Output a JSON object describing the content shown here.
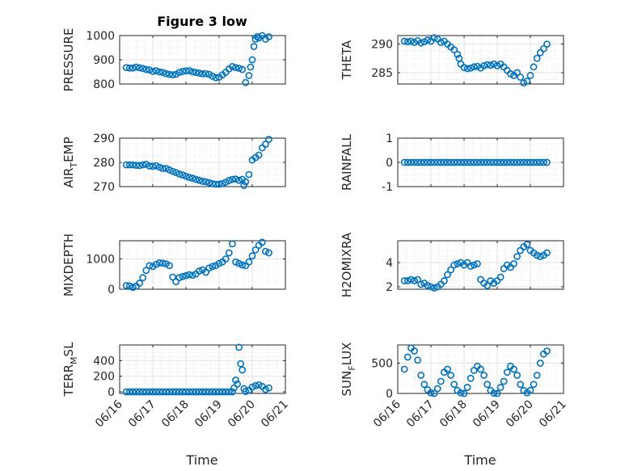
{
  "figure": {
    "title": "Figure 3 low",
    "marker_color": "#0072BD"
  },
  "chart_data": [
    {
      "type": "scatter",
      "ylabel": "PRESSURE",
      "ylabel_sub": "",
      "ylabel_tail": "",
      "ylim": [
        800,
        1000
      ],
      "yticks": [
        800,
        900,
        1000
      ],
      "grid": true,
      "xlim": [
        0,
        5
      ],
      "xticks": [
        "06/16",
        "06/17",
        "06/18",
        "06/19",
        "06/20",
        "06/21"
      ],
      "x": [
        0.2,
        0.3,
        0.4,
        0.5,
        0.6,
        0.7,
        0.8,
        0.9,
        1.0,
        1.1,
        1.2,
        1.3,
        1.4,
        1.5,
        1.6,
        1.7,
        1.8,
        1.9,
        2.0,
        2.1,
        2.2,
        2.3,
        2.4,
        2.5,
        2.6,
        2.7,
        2.8,
        2.9,
        3.0,
        3.1,
        3.2,
        3.3,
        3.4,
        3.5,
        3.6,
        3.7,
        3.8,
        3.9,
        3.95,
        4.0,
        4.05,
        4.1,
        4.15,
        4.2,
        4.3,
        4.4,
        4.5
      ],
      "y": [
        868,
        866,
        866,
        870,
        867,
        864,
        860,
        858,
        852,
        855,
        850,
        848,
        843,
        840,
        838,
        840,
        848,
        852,
        854,
        855,
        850,
        848,
        845,
        842,
        843,
        840,
        832,
        826,
        828,
        838,
        848,
        862,
        872,
        868,
        865,
        860,
        806,
        835,
        870,
        900,
        955,
        985,
        995,
        990,
        1000,
        985,
        995
      ]
    },
    {
      "type": "scatter",
      "ylabel": "THETA",
      "ylabel_sub": "",
      "ylabel_tail": "",
      "ylim": [
        283,
        291.5
      ],
      "yticks": [
        285,
        290
      ],
      "grid": true,
      "xlim": [
        0,
        5
      ],
      "xticks": [
        "06/16",
        "06/17",
        "06/18",
        "06/19",
        "06/20",
        "06/21"
      ],
      "x": [
        0.2,
        0.3,
        0.4,
        0.5,
        0.6,
        0.7,
        0.8,
        0.9,
        1.0,
        1.1,
        1.2,
        1.3,
        1.4,
        1.5,
        1.6,
        1.7,
        1.8,
        1.85,
        1.9,
        2.0,
        2.1,
        2.2,
        2.3,
        2.4,
        2.5,
        2.6,
        2.7,
        2.8,
        2.9,
        3.0,
        3.1,
        3.2,
        3.3,
        3.4,
        3.5,
        3.6,
        3.7,
        3.8,
        3.9,
        4.0,
        4.1,
        4.2,
        4.3,
        4.4,
        4.5
      ],
      "y": [
        290.5,
        290.4,
        290.5,
        290.3,
        290.6,
        290.2,
        290.4,
        290.7,
        290.5,
        291.1,
        290.9,
        290.3,
        290.5,
        290.0,
        289.5,
        289.0,
        288.2,
        287.5,
        286.5,
        285.9,
        285.7,
        285.8,
        286.0,
        286.1,
        285.8,
        286.2,
        286.4,
        286.3,
        286.5,
        286.2,
        286.5,
        286.0,
        285.4,
        284.8,
        284.5,
        285.0,
        284.2,
        283.2,
        283.5,
        284.5,
        286.0,
        287.5,
        288.5,
        289.2,
        290.0
      ]
    },
    {
      "type": "scatter",
      "ylabel": "AIR",
      "ylabel_sub": "T",
      "ylabel_tail": "EMP",
      "ylim": [
        270,
        290
      ],
      "yticks": [
        270,
        280,
        290
      ],
      "grid": true,
      "xlim": [
        0,
        5
      ],
      "xticks": [
        "06/16",
        "06/17",
        "06/18",
        "06/19",
        "06/20",
        "06/21"
      ],
      "x": [
        0.2,
        0.3,
        0.4,
        0.5,
        0.6,
        0.7,
        0.8,
        0.9,
        1.0,
        1.1,
        1.2,
        1.3,
        1.4,
        1.5,
        1.6,
        1.7,
        1.8,
        1.9,
        2.0,
        2.1,
        2.2,
        2.3,
        2.4,
        2.5,
        2.6,
        2.7,
        2.8,
        2.9,
        3.0,
        3.1,
        3.2,
        3.3,
        3.4,
        3.5,
        3.6,
        3.7,
        3.75,
        3.8,
        3.9,
        4.0,
        4.1,
        4.2,
        4.3,
        4.4,
        4.5
      ],
      "y": [
        279,
        279,
        279,
        278.8,
        278.7,
        279,
        279.2,
        278.5,
        278.4,
        278.6,
        278.0,
        277.5,
        277.5,
        276.9,
        276.3,
        275.8,
        275.2,
        274.8,
        274.3,
        273.8,
        273.5,
        273.0,
        272.6,
        272.2,
        272.0,
        271.6,
        271.2,
        271.0,
        271.0,
        271.3,
        271.8,
        272.5,
        273.0,
        273.1,
        272.6,
        273.0,
        270.5,
        272.0,
        275.0,
        281.0,
        282.0,
        283.0,
        286.0,
        287.5,
        289.5
      ]
    },
    {
      "type": "scatter",
      "ylabel": "RAINFALL",
      "ylabel_sub": "",
      "ylabel_tail": "",
      "ylim": [
        -1,
        1
      ],
      "yticks": [
        -1,
        0,
        1
      ],
      "grid": true,
      "xlim": [
        0,
        5
      ],
      "xticks": [
        "06/16",
        "06/17",
        "06/18",
        "06/19",
        "06/20",
        "06/21"
      ],
      "x": [
        0.2,
        0.3,
        0.4,
        0.5,
        0.6,
        0.7,
        0.8,
        0.9,
        1.0,
        1.1,
        1.2,
        1.3,
        1.4,
        1.5,
        1.6,
        1.7,
        1.8,
        1.9,
        2.0,
        2.1,
        2.2,
        2.3,
        2.4,
        2.5,
        2.6,
        2.7,
        2.8,
        2.9,
        3.0,
        3.1,
        3.2,
        3.3,
        3.4,
        3.5,
        3.6,
        3.7,
        3.8,
        3.9,
        4.0,
        4.1,
        4.2,
        4.3,
        4.4,
        4.5
      ],
      "y": [
        0,
        0,
        0,
        0,
        0,
        0,
        0,
        0,
        0,
        0,
        0,
        0,
        0,
        0,
        0,
        0,
        0,
        0,
        0,
        0,
        0,
        0,
        0,
        0,
        0,
        0,
        0,
        0,
        0,
        0,
        0,
        0,
        0,
        0,
        0,
        0,
        0,
        0,
        0,
        0,
        0,
        0,
        0,
        0
      ]
    },
    {
      "type": "scatter",
      "ylabel": "MIXDEPTH",
      "ylabel_sub": "",
      "ylabel_tail": "",
      "ylim": [
        0,
        1600
      ],
      "yticks": [
        0,
        1000
      ],
      "grid": true,
      "xlim": [
        0,
        5
      ],
      "xticks": [
        "06/16",
        "06/17",
        "06/18",
        "06/19",
        "06/20",
        "06/21"
      ],
      "x": [
        0.2,
        0.3,
        0.4,
        0.5,
        0.6,
        0.7,
        0.8,
        0.9,
        1.0,
        1.1,
        1.2,
        1.3,
        1.4,
        1.5,
        1.6,
        1.7,
        1.8,
        1.9,
        2.0,
        2.1,
        2.2,
        2.3,
        2.4,
        2.5,
        2.6,
        2.7,
        2.8,
        2.9,
        3.0,
        3.1,
        3.2,
        3.3,
        3.4,
        3.5,
        3.6,
        3.7,
        3.8,
        3.9,
        4.0,
        4.1,
        4.2,
        4.3,
        4.4,
        4.5
      ],
      "y": [
        120,
        110,
        60,
        100,
        200,
        380,
        620,
        780,
        750,
        820,
        870,
        860,
        840,
        780,
        400,
        250,
        380,
        420,
        450,
        480,
        460,
        500,
        600,
        640,
        560,
        700,
        750,
        780,
        850,
        900,
        1000,
        1200,
        1500,
        900,
        850,
        800,
        780,
        900,
        1100,
        1300,
        1450,
        1550,
        1250,
        1200
      ]
    },
    {
      "type": "scatter",
      "ylabel": "H2OMIXRA",
      "ylabel_sub": "",
      "ylabel_tail": "",
      "ylim": [
        1.8,
        5.8
      ],
      "yticks": [
        2,
        4
      ],
      "grid": true,
      "xlim": [
        0,
        5
      ],
      "xticks": [
        "06/16",
        "06/17",
        "06/18",
        "06/19",
        "06/20",
        "06/21"
      ],
      "x": [
        0.2,
        0.3,
        0.4,
        0.5,
        0.6,
        0.7,
        0.8,
        0.9,
        1.0,
        1.1,
        1.2,
        1.3,
        1.4,
        1.5,
        1.6,
        1.7,
        1.8,
        1.9,
        2.0,
        2.1,
        2.2,
        2.3,
        2.4,
        2.5,
        2.6,
        2.7,
        2.8,
        2.9,
        3.0,
        3.1,
        3.2,
        3.3,
        3.4,
        3.5,
        3.6,
        3.7,
        3.8,
        3.9,
        4.0,
        4.1,
        4.2,
        4.3,
        4.4,
        4.5
      ],
      "y": [
        2.5,
        2.5,
        2.6,
        2.5,
        2.6,
        2.2,
        2.3,
        2.1,
        2.0,
        1.9,
        2.0,
        2.2,
        2.5,
        3.0,
        3.4,
        3.8,
        3.9,
        4.0,
        3.8,
        4.0,
        3.7,
        3.8,
        3.9,
        2.6,
        2.3,
        2.1,
        2.5,
        2.3,
        2.5,
        2.8,
        3.5,
        3.8,
        3.6,
        3.9,
        4.5,
        5.0,
        5.3,
        5.5,
        5.0,
        4.8,
        4.6,
        4.5,
        4.6,
        4.8
      ]
    },
    {
      "type": "scatter",
      "ylabel": "TERR",
      "ylabel_sub": "M",
      "ylabel_tail": "SL",
      "ylim": [
        -20,
        600
      ],
      "yticks": [
        0,
        200,
        400
      ],
      "grid": true,
      "xlim": [
        0,
        5
      ],
      "xticks": [
        "06/16",
        "06/17",
        "06/18",
        "06/19",
        "06/20",
        "06/21"
      ],
      "x": [
        0.2,
        0.3,
        0.4,
        0.5,
        0.6,
        0.7,
        0.8,
        0.9,
        1.0,
        1.1,
        1.2,
        1.3,
        1.4,
        1.5,
        1.6,
        1.7,
        1.8,
        1.9,
        2.0,
        2.1,
        2.2,
        2.3,
        2.4,
        2.5,
        2.6,
        2.7,
        2.8,
        2.9,
        3.0,
        3.1,
        3.2,
        3.3,
        3.4,
        3.45,
        3.5,
        3.55,
        3.6,
        3.65,
        3.7,
        3.75,
        3.8,
        3.9,
        4.0,
        4.1,
        4.2,
        4.3,
        4.4,
        4.5
      ],
      "y": [
        0,
        0,
        0,
        0,
        0,
        0,
        0,
        0,
        0,
        0,
        0,
        0,
        0,
        0,
        0,
        0,
        0,
        0,
        0,
        0,
        0,
        0,
        0,
        0,
        0,
        0,
        0,
        0,
        0,
        0,
        0,
        0,
        0,
        50,
        150,
        100,
        570,
        360,
        280,
        40,
        5,
        20,
        60,
        80,
        90,
        70,
        30,
        50
      ]
    },
    {
      "type": "scatter",
      "ylabel": "SUN",
      "ylabel_sub": "F",
      "ylabel_tail": "LUX",
      "ylim": [
        0,
        800
      ],
      "yticks": [
        0,
        500
      ],
      "grid": true,
      "xlim": [
        0,
        5
      ],
      "xticks": [
        "06/16",
        "06/17",
        "06/18",
        "06/19",
        "06/20",
        "06/21"
      ],
      "x": [
        0.2,
        0.3,
        0.4,
        0.5,
        0.6,
        0.7,
        0.8,
        0.9,
        1.0,
        1.1,
        1.2,
        1.3,
        1.4,
        1.5,
        1.6,
        1.7,
        1.8,
        1.9,
        2.0,
        2.1,
        2.2,
        2.3,
        2.4,
        2.5,
        2.6,
        2.7,
        2.8,
        2.9,
        3.0,
        3.1,
        3.2,
        3.3,
        3.4,
        3.5,
        3.6,
        3.7,
        3.8,
        3.9,
        4.0,
        4.1,
        4.2,
        4.3,
        4.4,
        4.5
      ],
      "y": [
        400,
        600,
        750,
        700,
        550,
        300,
        150,
        60,
        10,
        0,
        80,
        200,
        350,
        400,
        300,
        150,
        50,
        10,
        0,
        100,
        250,
        380,
        450,
        400,
        300,
        150,
        50,
        5,
        0,
        100,
        200,
        350,
        450,
        400,
        300,
        150,
        50,
        10,
        50,
        150,
        300,
        500,
        650,
        700
      ]
    }
  ]
}
